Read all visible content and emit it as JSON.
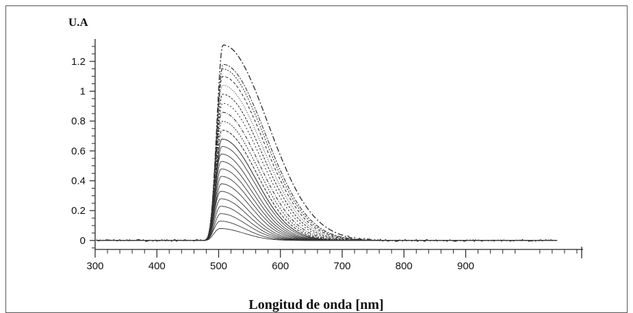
{
  "chart_data": {
    "type": "line",
    "title": "",
    "xlabel": "Longitud de onda [nm]",
    "ylabel": "U.A",
    "xlim": [
      300,
      1090
    ],
    "ylim": [
      -0.06,
      1.35
    ],
    "xticks": [
      300,
      400,
      500,
      600,
      700,
      800,
      900
    ],
    "yticks": [
      0,
      0.2,
      0.4,
      0.6,
      0.8,
      1,
      1.2
    ],
    "xtick_labels": [
      "300",
      "400",
      "500",
      "600",
      "700",
      "800",
      "900"
    ],
    "ytick_labels": [
      "0",
      "0.2",
      "0.4",
      "0.6",
      "0.8",
      "1",
      "1.2"
    ],
    "grid": false,
    "legend": "none",
    "line_color": "#333333",
    "series": [
      {
        "peak_x": 502,
        "peak": 0.08
      },
      {
        "peak_x": 502,
        "peak": 0.13
      },
      {
        "peak_x": 503,
        "peak": 0.18
      },
      {
        "peak_x": 503,
        "peak": 0.23
      },
      {
        "peak_x": 503,
        "peak": 0.28
      },
      {
        "peak_x": 503,
        "peak": 0.33
      },
      {
        "peak_x": 504,
        "peak": 0.38
      },
      {
        "peak_x": 504,
        "peak": 0.43
      },
      {
        "peak_x": 504,
        "peak": 0.48
      },
      {
        "peak_x": 504,
        "peak": 0.53
      },
      {
        "peak_x": 504,
        "peak": 0.58
      },
      {
        "peak_x": 505,
        "peak": 0.63
      },
      {
        "peak_x": 505,
        "peak": 0.68
      },
      {
        "peak_x": 505,
        "peak": 0.74
      },
      {
        "peak_x": 505,
        "peak": 0.8
      },
      {
        "peak_x": 505,
        "peak": 0.86
      },
      {
        "peak_x": 506,
        "peak": 0.92
      },
      {
        "peak_x": 506,
        "peak": 0.98
      },
      {
        "peak_x": 506,
        "peak": 1.04
      },
      {
        "peak_x": 506,
        "peak": 1.1
      },
      {
        "peak_x": 506,
        "peak": 1.15
      },
      {
        "peak_x": 507,
        "peak": 1.18
      },
      {
        "peak_x": 507,
        "peak": 1.31
      }
    ]
  }
}
